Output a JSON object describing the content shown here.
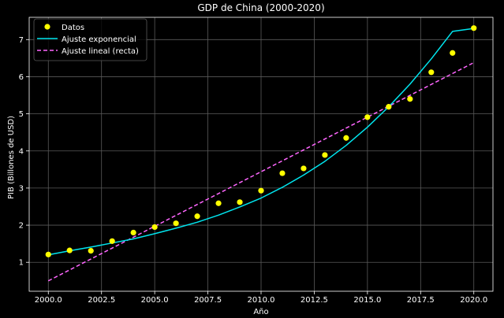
{
  "chart_data": {
    "type": "scatter",
    "title": "GDP de China (2000-2020)",
    "xlabel": "Año",
    "ylabel": "PIB (Billones de USD)",
    "xlim": [
      1999.1,
      2020.9
    ],
    "ylim": [
      0.22,
      7.6
    ],
    "xticks": [
      2000.0,
      2002.5,
      2005.0,
      2007.5,
      2010.0,
      2012.5,
      2015.0,
      2017.5,
      2020.0
    ],
    "xtick_labels": [
      "2000.0",
      "2002.5",
      "2005.0",
      "2007.5",
      "2010.0",
      "2012.5",
      "2015.0",
      "2017.5",
      "2020.0"
    ],
    "yticks": [
      1,
      2,
      3,
      4,
      5,
      6,
      7
    ],
    "ytick_labels": [
      "1",
      "2",
      "3",
      "4",
      "5",
      "6",
      "7"
    ],
    "grid": true,
    "legend_position": "top-left",
    "colors": {
      "background": "#000000",
      "points": "#ffff00",
      "exp_fit": "#00e5ee",
      "lin_fit": "#ff66ff",
      "text": "#ffffff",
      "grid": "#5a5a5a"
    },
    "series": [
      {
        "name": "Datos",
        "kind": "scatter",
        "x": [
          2000,
          2001,
          2002,
          2003,
          2004,
          2005,
          2006,
          2007,
          2008,
          2009,
          2010,
          2011,
          2012,
          2013,
          2014,
          2015,
          2016,
          2017,
          2018,
          2019,
          2020
        ],
        "values": [
          1.21,
          1.32,
          1.31,
          1.57,
          1.8,
          1.95,
          2.05,
          2.24,
          2.59,
          2.62,
          2.93,
          3.4,
          3.53,
          3.89,
          4.35,
          4.91,
          5.19,
          5.4,
          6.12,
          6.64,
          7.31
        ]
      },
      {
        "name": "Ajuste exponencial",
        "kind": "line",
        "dash": "solid",
        "x": [
          2000,
          2001,
          2002,
          2003,
          2004,
          2005,
          2006,
          2007,
          2008,
          2009,
          2010,
          2011,
          2012,
          2013,
          2014,
          2015,
          2016,
          2017,
          2018,
          2019,
          2020
        ],
        "values": [
          1.2,
          1.31,
          1.41,
          1.52,
          1.63,
          1.77,
          1.92,
          2.08,
          2.27,
          2.49,
          2.73,
          3.02,
          3.35,
          3.72,
          4.15,
          4.64,
          5.19,
          5.8,
          6.48,
          7.22,
          7.3
        ]
      },
      {
        "name": "Ajuste lineal (recta)",
        "kind": "line",
        "dash": "dashed",
        "x": [
          2000,
          2020
        ],
        "values": [
          0.5,
          6.38
        ]
      }
    ]
  }
}
